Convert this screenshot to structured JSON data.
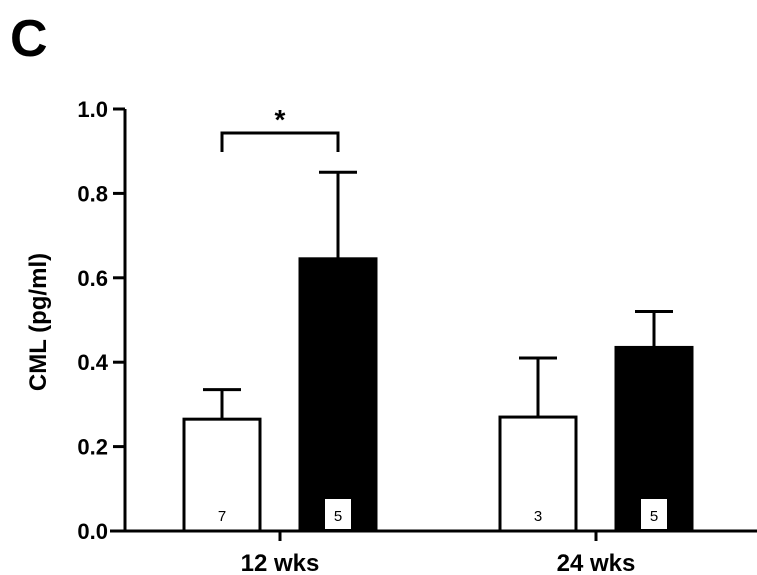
{
  "panel_label": "C",
  "chart_data": {
    "type": "bar",
    "ylabel": "CML (pg/ml)",
    "ylim": [
      0,
      1.0
    ],
    "yticks": [
      "0.0",
      "0.2",
      "0.4",
      "0.6",
      "0.8",
      "1.0"
    ],
    "categories": [
      "12 wks",
      "24 wks"
    ],
    "series": [
      {
        "fill": "#ffffff",
        "values": [
          0.265,
          0.27
        ],
        "errors": [
          0.07,
          0.14
        ],
        "n": [
          "7",
          "3"
        ]
      },
      {
        "fill": "#000000",
        "values": [
          0.645,
          0.435
        ],
        "errors": [
          0.205,
          0.085
        ],
        "n": [
          "5",
          "5"
        ]
      }
    ],
    "significance": [
      {
        "category_index": 0,
        "label": "*"
      }
    ]
  }
}
